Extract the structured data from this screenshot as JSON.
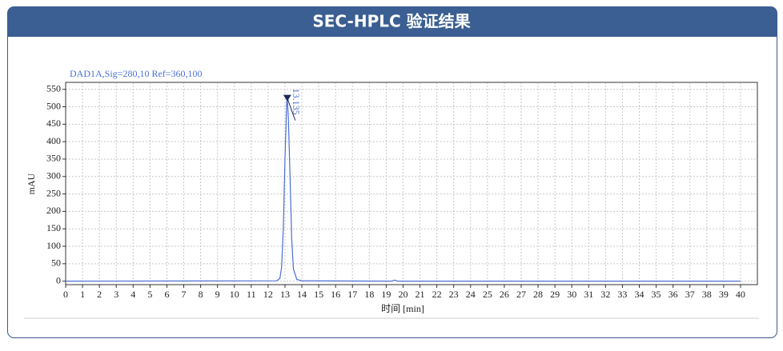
{
  "header": {
    "title": "SEC-HPLC 验证结果"
  },
  "chart_data": {
    "type": "line",
    "title": "DAD1A,Sig=280,10  Ref=360,100",
    "xlabel": "时间 [min]",
    "ylabel": "mAU",
    "x": [
      0,
      12.5,
      12.7,
      12.8,
      12.9,
      13.0,
      13.1,
      13.135,
      13.2,
      13.3,
      13.4,
      13.5,
      13.7,
      14,
      19.3,
      19.5,
      19.7,
      40
    ],
    "series": [
      {
        "name": "DAD1A",
        "color": "#4a6fd6",
        "values": [
          0,
          1,
          8,
          40,
          150,
          350,
          510,
          525,
          470,
          300,
          120,
          35,
          5,
          1,
          0,
          3,
          0,
          0
        ]
      }
    ],
    "annotations": [
      {
        "x": 13.135,
        "y": 525,
        "text": "13.135"
      }
    ],
    "xlim": [
      0,
      41
    ],
    "xticks": [
      0,
      1,
      2,
      3,
      4,
      5,
      6,
      7,
      8,
      9,
      10,
      11,
      12,
      13,
      14,
      15,
      16,
      17,
      18,
      19,
      20,
      21,
      22,
      23,
      24,
      25,
      26,
      27,
      28,
      29,
      30,
      31,
      32,
      33,
      34,
      35,
      36,
      37,
      38,
      39,
      40
    ],
    "ylim": [
      -10,
      570
    ],
    "yticks": [
      0,
      50,
      100,
      150,
      200,
      250,
      300,
      350,
      400,
      450,
      500,
      550
    ],
    "grid": true
  }
}
